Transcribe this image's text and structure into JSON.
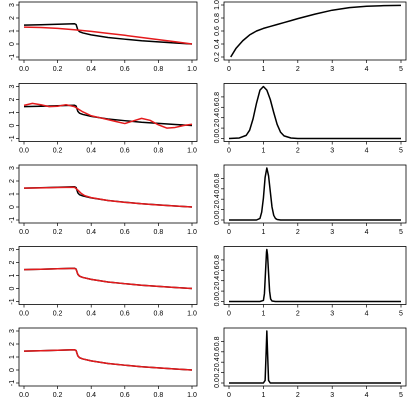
{
  "chart_data": [
    {
      "type": "line",
      "row": 0,
      "col": 0,
      "xlim": [
        0,
        1
      ],
      "ylim": [
        -1,
        3
      ],
      "xticks": [
        "0.0",
        "0.2",
        "0.4",
        "0.6",
        "0.8",
        "1.0"
      ],
      "yticks": [
        "-1",
        "0",
        "1",
        "2",
        "3"
      ],
      "series": [
        {
          "color": "#000000",
          "x": [
            0,
            0.1,
            0.2,
            0.3,
            0.31,
            0.32,
            0.33,
            0.35,
            0.4,
            0.5,
            0.6,
            0.7,
            0.8,
            0.9,
            1.0
          ],
          "y": [
            1.45,
            1.48,
            1.52,
            1.56,
            1.5,
            1.1,
            0.95,
            0.85,
            0.7,
            0.5,
            0.37,
            0.25,
            0.16,
            0.08,
            0.0
          ]
        },
        {
          "color": "#e41a1c",
          "x": [
            0,
            0.1,
            0.2,
            0.3,
            0.4,
            0.5,
            0.6,
            0.7,
            0.8,
            0.9,
            1.0
          ],
          "y": [
            1.3,
            1.27,
            1.2,
            1.1,
            0.97,
            0.82,
            0.67,
            0.5,
            0.34,
            0.17,
            0.0
          ]
        }
      ]
    },
    {
      "type": "line",
      "row": 0,
      "col": 1,
      "xlim": [
        0,
        5
      ],
      "ylim": [
        0.2,
        1.0
      ],
      "xticks": [
        "0",
        "1",
        "2",
        "3",
        "4",
        "5"
      ],
      "yticks": [
        "0.2",
        "0.4",
        "0.6",
        "0.8",
        "1.0"
      ],
      "series": [
        {
          "color": "#000000",
          "x": [
            0.05,
            0.2,
            0.4,
            0.6,
            0.8,
            1.0,
            1.2,
            1.4,
            1.6,
            1.8,
            2.0,
            2.5,
            3.0,
            3.5,
            4.0,
            4.5,
            5.0
          ],
          "y": [
            0.2,
            0.33,
            0.45,
            0.54,
            0.6,
            0.64,
            0.67,
            0.7,
            0.73,
            0.76,
            0.79,
            0.86,
            0.92,
            0.96,
            0.98,
            0.99,
            0.995
          ]
        }
      ]
    },
    {
      "type": "line",
      "row": 1,
      "col": 0,
      "xlim": [
        0,
        1
      ],
      "ylim": [
        -1,
        3
      ],
      "xticks": [
        "0.0",
        "0.2",
        "0.4",
        "0.6",
        "0.8",
        "1.0"
      ],
      "yticks": [
        "-1",
        "0",
        "1",
        "2",
        "3"
      ],
      "series": [
        {
          "color": "#000000",
          "x": [
            0,
            0.1,
            0.2,
            0.3,
            0.31,
            0.32,
            0.33,
            0.35,
            0.4,
            0.5,
            0.6,
            0.7,
            0.8,
            0.9,
            1.0
          ],
          "y": [
            1.45,
            1.48,
            1.52,
            1.56,
            1.5,
            1.1,
            0.95,
            0.85,
            0.7,
            0.5,
            0.37,
            0.25,
            0.16,
            0.08,
            0.0
          ]
        },
        {
          "color": "#e41a1c",
          "x": [
            0,
            0.05,
            0.1,
            0.15,
            0.2,
            0.25,
            0.3,
            0.35,
            0.4,
            0.45,
            0.5,
            0.55,
            0.6,
            0.65,
            0.7,
            0.75,
            0.8,
            0.85,
            0.9,
            0.95,
            1.0
          ],
          "y": [
            1.55,
            1.7,
            1.6,
            1.45,
            1.48,
            1.6,
            1.45,
            1.05,
            0.75,
            0.6,
            0.45,
            0.3,
            0.15,
            0.35,
            0.55,
            0.4,
            0.05,
            -0.2,
            -0.15,
            0.0,
            0.1
          ]
        }
      ]
    },
    {
      "type": "line",
      "row": 1,
      "col": 1,
      "xlim": [
        0,
        5
      ],
      "ylim": [
        0,
        1
      ],
      "xticks": [
        "0",
        "1",
        "2",
        "3",
        "4",
        "5"
      ],
      "yticks": [
        "0.0",
        "0.2",
        "0.4",
        "0.6",
        "0.8"
      ],
      "series": [
        {
          "color": "#000000",
          "x": [
            0,
            0.3,
            0.5,
            0.6,
            0.7,
            0.8,
            0.9,
            1.0,
            1.1,
            1.2,
            1.3,
            1.4,
            1.5,
            1.6,
            1.8,
            2.0,
            3.0,
            4.0,
            5.0
          ],
          "y": [
            0,
            0.01,
            0.06,
            0.16,
            0.38,
            0.68,
            0.93,
            1.0,
            0.93,
            0.75,
            0.5,
            0.27,
            0.12,
            0.05,
            0.01,
            0,
            0,
            0,
            0
          ]
        }
      ]
    },
    {
      "type": "line",
      "row": 2,
      "col": 0,
      "xlim": [
        0,
        1
      ],
      "ylim": [
        -1,
        3
      ],
      "xticks": [
        "0.0",
        "0.2",
        "0.4",
        "0.6",
        "0.8",
        "1.0"
      ],
      "yticks": [
        "-1",
        "0",
        "1",
        "2",
        "3"
      ],
      "series": [
        {
          "color": "#000000",
          "x": [
            0,
            0.1,
            0.2,
            0.3,
            0.31,
            0.32,
            0.33,
            0.35,
            0.4,
            0.5,
            0.6,
            0.7,
            0.8,
            0.9,
            1.0
          ],
          "y": [
            1.45,
            1.48,
            1.52,
            1.56,
            1.5,
            1.1,
            0.95,
            0.85,
            0.7,
            0.5,
            0.37,
            0.25,
            0.16,
            0.08,
            0.0
          ]
        },
        {
          "color": "#e41a1c",
          "x": [
            0,
            0.1,
            0.2,
            0.3,
            0.32,
            0.34,
            0.36,
            0.4,
            0.5,
            0.6,
            0.7,
            0.8,
            0.9,
            1.0
          ],
          "y": [
            1.45,
            1.47,
            1.5,
            1.52,
            1.3,
            1.05,
            0.88,
            0.72,
            0.5,
            0.36,
            0.25,
            0.15,
            0.08,
            0.0
          ]
        }
      ]
    },
    {
      "type": "line",
      "row": 2,
      "col": 1,
      "xlim": [
        0,
        5
      ],
      "ylim": [
        0,
        1
      ],
      "xticks": [
        "0",
        "1",
        "2",
        "3",
        "4",
        "5"
      ],
      "yticks": [
        "0.0",
        "0.2",
        "0.4",
        "0.6",
        "0.8"
      ],
      "series": [
        {
          "color": "#000000",
          "x": [
            0,
            0.8,
            0.9,
            0.95,
            1.0,
            1.05,
            1.1,
            1.15,
            1.2,
            1.25,
            1.3,
            1.35,
            1.4,
            1.5,
            2.0,
            3.0,
            5.0
          ],
          "y": [
            0,
            0,
            0.03,
            0.15,
            0.42,
            0.82,
            1.0,
            0.85,
            0.55,
            0.25,
            0.09,
            0.03,
            0.01,
            0,
            0,
            0,
            0
          ]
        }
      ]
    },
    {
      "type": "line",
      "row": 3,
      "col": 0,
      "xlim": [
        0,
        1
      ],
      "ylim": [
        -1,
        3
      ],
      "xticks": [
        "0.0",
        "0.2",
        "0.4",
        "0.6",
        "0.8",
        "1.0"
      ],
      "yticks": [
        "-1",
        "0",
        "1",
        "2",
        "3"
      ],
      "series": [
        {
          "color": "#000000",
          "x": [
            0,
            0.1,
            0.2,
            0.3,
            0.31,
            0.32,
            0.33,
            0.35,
            0.4,
            0.5,
            0.6,
            0.7,
            0.8,
            0.9,
            1.0
          ],
          "y": [
            1.45,
            1.48,
            1.52,
            1.56,
            1.5,
            1.1,
            0.95,
            0.85,
            0.7,
            0.5,
            0.37,
            0.25,
            0.16,
            0.08,
            0.0
          ]
        },
        {
          "color": "#e41a1c",
          "x": [
            0,
            0.1,
            0.2,
            0.3,
            0.31,
            0.32,
            0.33,
            0.35,
            0.4,
            0.5,
            0.6,
            0.7,
            0.8,
            0.9,
            1.0
          ],
          "y": [
            1.45,
            1.48,
            1.52,
            1.55,
            1.48,
            1.12,
            0.96,
            0.85,
            0.7,
            0.5,
            0.37,
            0.25,
            0.16,
            0.08,
            0.0
          ]
        }
      ]
    },
    {
      "type": "line",
      "row": 3,
      "col": 1,
      "xlim": [
        0,
        5
      ],
      "ylim": [
        0,
        1
      ],
      "xticks": [
        "0",
        "1",
        "2",
        "3",
        "4",
        "5"
      ],
      "yticks": [
        "0.0",
        "0.2",
        "0.4",
        "0.6",
        "0.8"
      ],
      "series": [
        {
          "color": "#000000",
          "x": [
            0,
            0.9,
            1.0,
            1.03,
            1.06,
            1.09,
            1.1,
            1.12,
            1.15,
            1.18,
            1.21,
            1.25,
            1.35,
            2.0,
            5.0
          ],
          "y": [
            0,
            0,
            0.02,
            0.15,
            0.55,
            0.95,
            1.0,
            0.9,
            0.55,
            0.2,
            0.05,
            0.01,
            0,
            0,
            0
          ]
        }
      ]
    },
    {
      "type": "line",
      "row": 4,
      "col": 0,
      "xlim": [
        0,
        1
      ],
      "ylim": [
        -1,
        3
      ],
      "xticks": [
        "0.0",
        "0.2",
        "0.4",
        "0.6",
        "0.8",
        "1.0"
      ],
      "yticks": [
        "-1",
        "0",
        "1",
        "2",
        "3"
      ],
      "series": [
        {
          "color": "#000000",
          "x": [
            0,
            0.1,
            0.2,
            0.3,
            0.31,
            0.32,
            0.33,
            0.35,
            0.4,
            0.5,
            0.6,
            0.7,
            0.8,
            0.9,
            1.0
          ],
          "y": [
            1.45,
            1.48,
            1.52,
            1.56,
            1.5,
            1.1,
            0.95,
            0.85,
            0.7,
            0.5,
            0.37,
            0.25,
            0.16,
            0.08,
            0.0
          ]
        },
        {
          "color": "#e41a1c",
          "x": [
            0,
            0.1,
            0.2,
            0.3,
            0.31,
            0.32,
            0.33,
            0.35,
            0.4,
            0.5,
            0.6,
            0.7,
            0.8,
            0.9,
            1.0
          ],
          "y": [
            1.45,
            1.48,
            1.52,
            1.56,
            1.5,
            1.1,
            0.95,
            0.85,
            0.7,
            0.5,
            0.37,
            0.25,
            0.16,
            0.08,
            0.0
          ]
        }
      ]
    },
    {
      "type": "line",
      "row": 4,
      "col": 1,
      "xlim": [
        0,
        5
      ],
      "ylim": [
        0,
        1
      ],
      "xticks": [
        "0",
        "1",
        "2",
        "3",
        "4",
        "5"
      ],
      "yticks": [
        "0.0",
        "0.2",
        "0.4",
        "0.6",
        "0.8"
      ],
      "series": [
        {
          "color": "#000000",
          "x": [
            0,
            1.0,
            1.05,
            1.08,
            1.1,
            1.12,
            1.15,
            1.2,
            2.0,
            5.0
          ],
          "y": [
            0,
            0,
            0.05,
            0.6,
            1.0,
            0.6,
            0.05,
            0,
            0,
            0
          ]
        }
      ]
    }
  ]
}
